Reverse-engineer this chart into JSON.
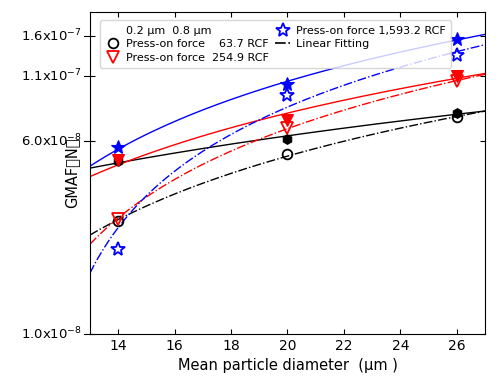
{
  "x": [
    14,
    20,
    26
  ],
  "series": [
    {
      "key": "black_solid",
      "y": [
        5e-08,
        6.1e-08,
        7.8e-08
      ],
      "color": "black",
      "marker": "h",
      "filled": true,
      "linestyle": "-",
      "ms": 7
    },
    {
      "key": "black_open",
      "y": [
        2.85e-08,
        5.3e-08,
        7.5e-08
      ],
      "color": "black",
      "marker": "o",
      "filled": false,
      "linestyle": "-.",
      "ms": 7
    },
    {
      "key": "red_solid",
      "y": [
        5.05e-08,
        7.3e-08,
        1.1e-07
      ],
      "color": "red",
      "marker": "v",
      "filled": true,
      "linestyle": "-",
      "ms": 8
    },
    {
      "key": "red_open",
      "y": [
        2.9e-08,
        6.8e-08,
        1.05e-07
      ],
      "color": "red",
      "marker": "v",
      "filled": false,
      "linestyle": "-.",
      "ms": 8
    },
    {
      "key": "blue_solid",
      "y": [
        5.7e-08,
        1.02e-07,
        1.55e-07
      ],
      "color": "blue",
      "marker": "*",
      "filled": true,
      "linestyle": "-",
      "ms": 10
    },
    {
      "key": "blue_open",
      "y": [
        2.2e-08,
        9.2e-08,
        1.33e-07
      ],
      "color": "blue",
      "marker": "*",
      "filled": false,
      "linestyle": "-.",
      "ms": 10
    }
  ],
  "xlabel": "Mean particle diameter  (μm )",
  "ylabel": "GMAF（N）",
  "ylim": [
    1e-08,
    2e-07
  ],
  "xlim": [
    13,
    27
  ],
  "xticks": [
    14,
    16,
    18,
    20,
    22,
    24,
    26
  ],
  "ytick_vals": [
    1e-08,
    6e-08,
    1.1e-07,
    1.6e-07
  ],
  "ytick_labels": [
    "1.0x10⁻⁸",
    "6.0x10⁻⁸",
    "1.1x10⁻⁷",
    "1.6x10⁻⁷"
  ],
  "fig_width": 5.0,
  "fig_height": 3.88,
  "dpi": 100,
  "legend_header": "0.2 μm  0.8 μm",
  "legend_rows": [
    {
      "label": "Press-on force    63.7 RCF",
      "color": "black",
      "marker_solid": "h",
      "marker_open": "o",
      "ms": 7
    },
    {
      "label": "Press-on force  254.9 RCF",
      "color": "red",
      "marker_solid": "v",
      "marker_open": "v",
      "ms": 8
    },
    {
      "label": "Press-on force 1,593.2 RCF",
      "color": "blue",
      "marker_solid": "*",
      "marker_open": "*",
      "ms": 10
    }
  ]
}
